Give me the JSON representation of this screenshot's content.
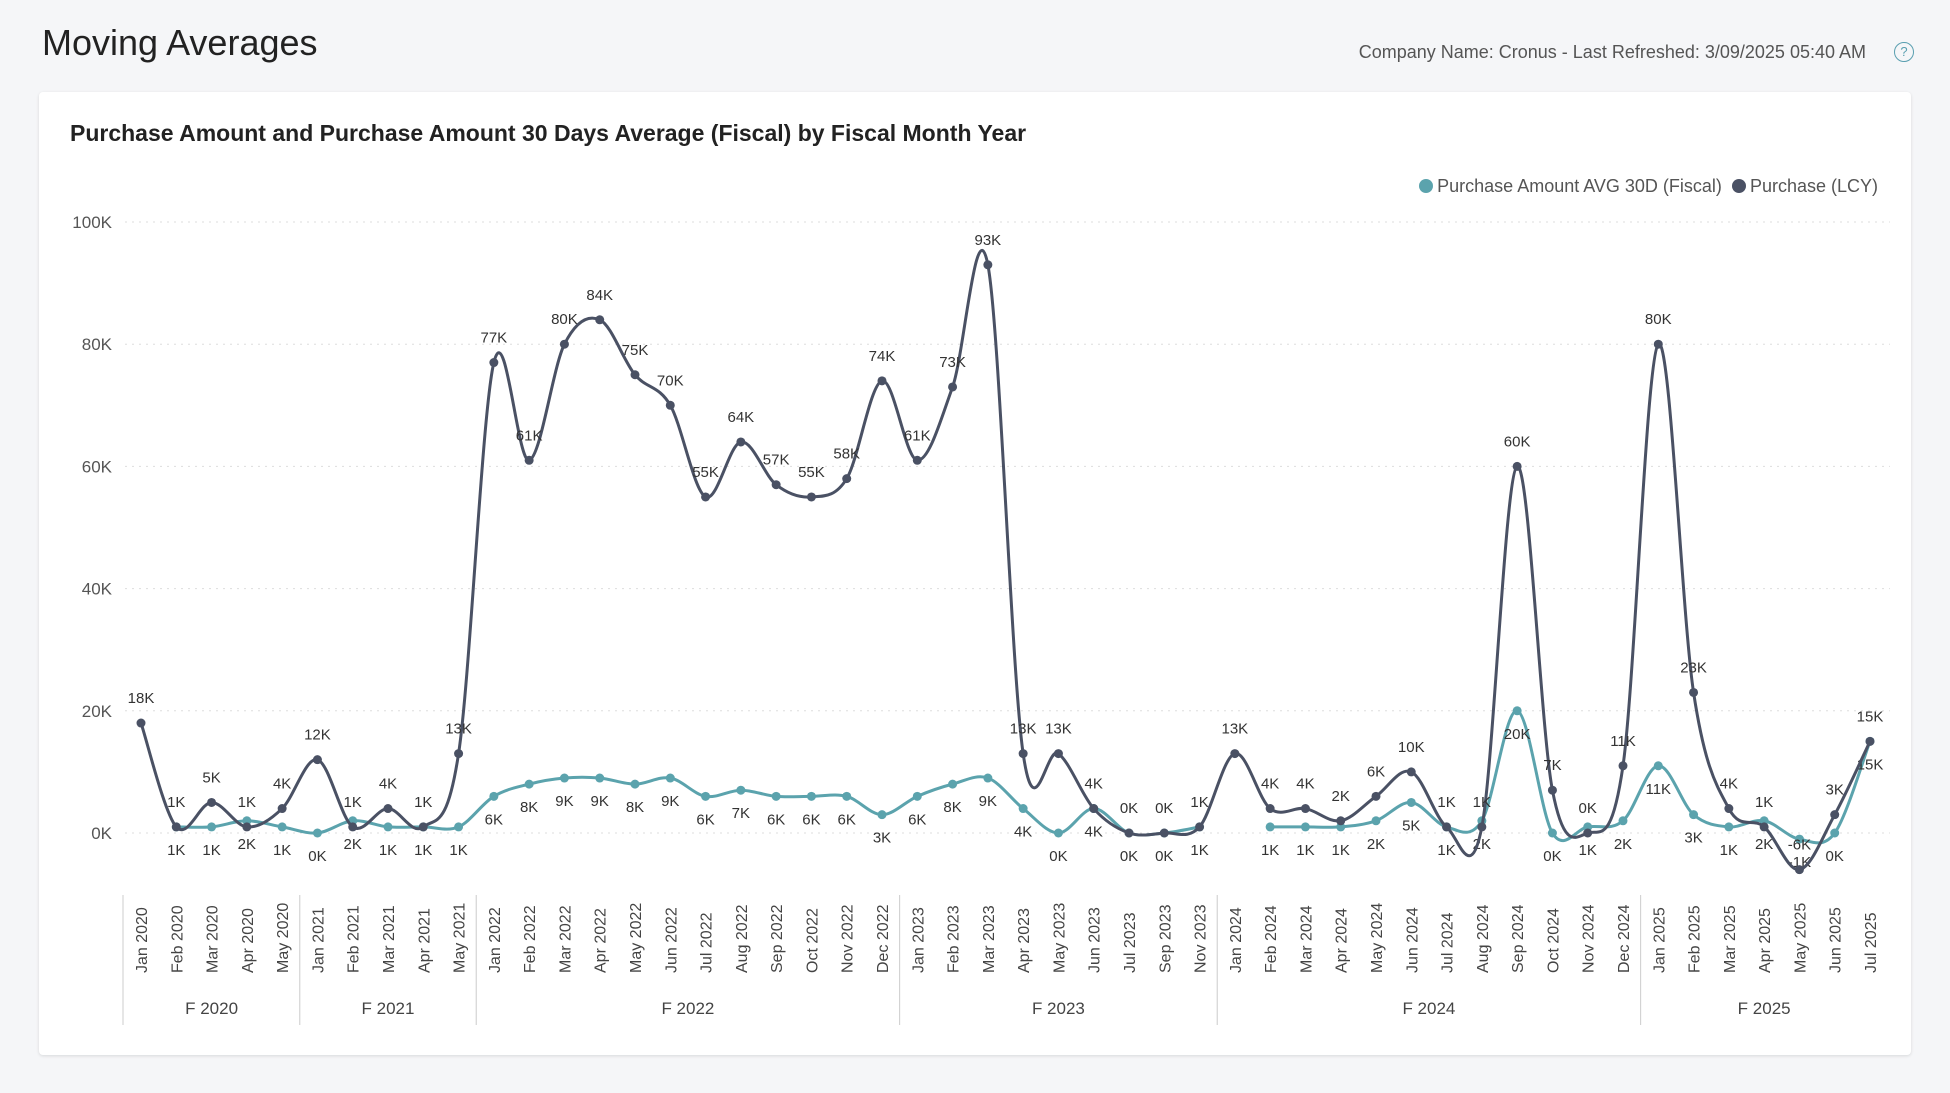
{
  "header": {
    "title": "Moving Averages",
    "meta": "Company Name: Cronus - Last Refreshed: 3/09/2025 05:40 AM",
    "help_icon": "question-circle-icon"
  },
  "chart_data": {
    "type": "line",
    "title": "Purchase Amount and Purchase Amount 30 Days Average (Fiscal) by Fiscal Month Year",
    "legend_position": "top-right",
    "grid": true,
    "ylim": [
      -10000,
      100000
    ],
    "yticks": [
      "0K",
      "20K",
      "40K",
      "60K",
      "80K",
      "100K"
    ],
    "ytick_values": [
      0,
      20000,
      40000,
      60000,
      80000,
      100000
    ],
    "categories": [
      "Jan 2020",
      "Feb 2020",
      "Mar 2020",
      "Apr 2020",
      "May 2020",
      "Jan 2021",
      "Feb 2021",
      "Mar 2021",
      "Apr 2021",
      "May 2021",
      "Jan 2022",
      "Feb 2022",
      "Mar 2022",
      "Apr 2022",
      "May 2022",
      "Jun 2022",
      "Jul 2022",
      "Aug 2022",
      "Sep 2022",
      "Oct 2022",
      "Nov 2022",
      "Dec 2022",
      "Jan 2023",
      "Feb 2023",
      "Mar 2023",
      "Apr 2023",
      "May 2023",
      "Jun 2023",
      "Jul 2023",
      "Sep 2023",
      "Nov 2023",
      "Jan 2024",
      "Feb 2024",
      "Mar 2024",
      "Apr 2024",
      "May 2024",
      "Jun 2024",
      "Jul 2024",
      "Aug 2024",
      "Sep 2024",
      "Oct 2024",
      "Nov 2024",
      "Dec 2024",
      "Jan 2025",
      "Feb 2025",
      "Mar 2025",
      "Apr 2025",
      "May 2025",
      "Jun 2025",
      "Jul 2025"
    ],
    "groups": [
      {
        "label": "F 2020",
        "count": 5
      },
      {
        "label": "F 2021",
        "count": 5
      },
      {
        "label": "F 2022",
        "count": 12
      },
      {
        "label": "F 2023",
        "count": 9
      },
      {
        "label": "F 2024",
        "count": 12
      },
      {
        "label": "F 2025",
        "count": 7
      }
    ],
    "series": [
      {
        "name": "Purchase Amount AVG 30D (Fiscal)",
        "color": "#5ba3ad",
        "values": [
          null,
          1000,
          1000,
          2000,
          1000,
          0,
          2000,
          1000,
          1000,
          1000,
          6000,
          8000,
          9000,
          9000,
          8000,
          9000,
          6000,
          7000,
          6000,
          6000,
          6000,
          3000,
          6000,
          8000,
          9000,
          4000,
          0,
          4000,
          0,
          0,
          1000,
          null,
          1000,
          1000,
          1000,
          2000,
          5000,
          1000,
          2000,
          20000,
          0,
          1000,
          2000,
          11000,
          3000,
          1000,
          2000,
          -1000,
          0,
          15000
        ]
      },
      {
        "name": "Purchase (LCY)",
        "color": "#4a5164",
        "values": [
          18000,
          1000,
          5000,
          1000,
          4000,
          12000,
          1000,
          4000,
          1000,
          13000,
          77000,
          61000,
          80000,
          84000,
          75000,
          70000,
          55000,
          64000,
          57000,
          55000,
          58000,
          74000,
          61000,
          73000,
          93000,
          13000,
          13000,
          4000,
          0,
          0,
          1000,
          13000,
          4000,
          4000,
          2000,
          6000,
          10000,
          1000,
          1000,
          60000,
          7000,
          0,
          11000,
          80000,
          23000,
          4000,
          1000,
          -6000,
          3000,
          15000
        ]
      }
    ]
  }
}
